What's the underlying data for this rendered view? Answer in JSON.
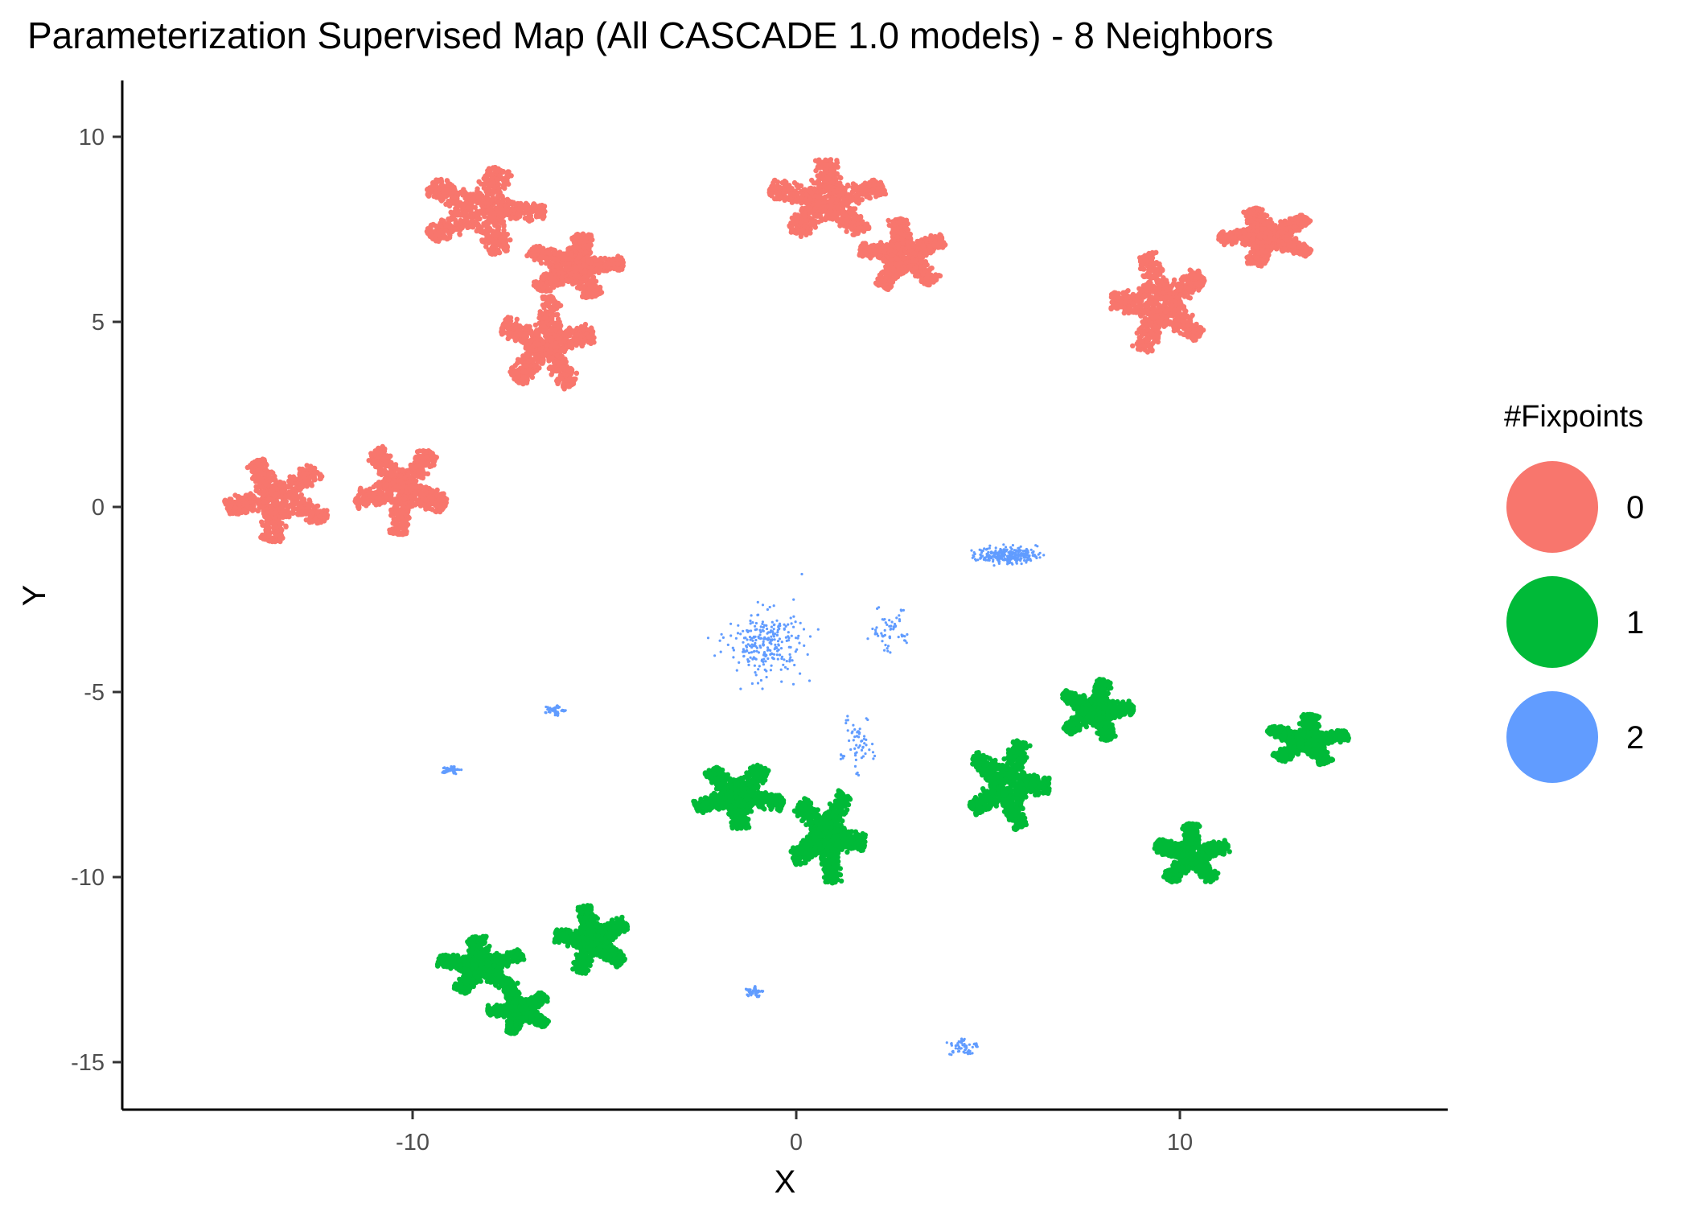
{
  "chart_data": {
    "type": "scatter",
    "title": "Parameterization Supervised Map (All CASCADE 1.0 models) - 8 Neighbors",
    "xlabel": "X",
    "ylabel": "Y",
    "xlim": [
      -17.5,
      17
    ],
    "ylim": [
      -16.5,
      11.5
    ],
    "xticks": [
      -10,
      0,
      10
    ],
    "yticks": [
      10,
      5,
      0,
      -5,
      -10,
      -15
    ],
    "grid": false,
    "legend": {
      "title": "#Fixpoints",
      "position": "right",
      "entries": [
        "0",
        "1",
        "2"
      ]
    },
    "series": [
      {
        "name": "0",
        "color": "#F8766D",
        "marker": "dense leaf-shaped point clusters",
        "clusters": [
          {
            "center": [
              -8.2,
              8.0
            ],
            "spread": [
              3.3,
              2.4
            ]
          },
          {
            "center": [
              -5.8,
              6.5
            ],
            "spread": [
              2.6,
              1.8
            ]
          },
          {
            "center": [
              -6.5,
              4.4
            ],
            "spread": [
              2.5,
              2.6
            ]
          },
          {
            "center": [
              0.8,
              8.3
            ],
            "spread": [
              3.1,
              2.2
            ]
          },
          {
            "center": [
              2.8,
              6.8
            ],
            "spread": [
              2.3,
              2.0
            ]
          },
          {
            "center": [
              9.5,
              5.5
            ],
            "spread": [
              2.6,
              2.8
            ]
          },
          {
            "center": [
              12.3,
              7.3
            ],
            "spread": [
              2.6,
              1.6
            ]
          },
          {
            "center": [
              -13.5,
              0.2
            ],
            "spread": [
              2.8,
              2.3
            ]
          },
          {
            "center": [
              -10.3,
              0.5
            ],
            "spread": [
              2.5,
              2.5
            ]
          }
        ]
      },
      {
        "name": "1",
        "color": "#00BA38",
        "marker": "dense leaf-shaped point clusters",
        "clusters": [
          {
            "center": [
              -1.5,
              -7.8
            ],
            "spread": [
              2.4,
              1.8
            ]
          },
          {
            "center": [
              0.8,
              -8.9
            ],
            "spread": [
              2.0,
              2.6
            ]
          },
          {
            "center": [
              5.5,
              -7.5
            ],
            "spread": [
              2.2,
              2.5
            ]
          },
          {
            "center": [
              7.8,
              -5.5
            ],
            "spread": [
              2.0,
              1.7
            ]
          },
          {
            "center": [
              13.3,
              -6.3
            ],
            "spread": [
              2.2,
              1.4
            ]
          },
          {
            "center": [
              10.3,
              -9.4
            ],
            "spread": [
              2.0,
              1.7
            ]
          },
          {
            "center": [
              -8.2,
              -12.4
            ],
            "spread": [
              2.3,
              1.6
            ]
          },
          {
            "center": [
              -5.3,
              -11.7
            ],
            "spread": [
              2.0,
              1.9
            ]
          },
          {
            "center": [
              -7.2,
              -13.6
            ],
            "spread": [
              1.7,
              1.3
            ]
          }
        ]
      },
      {
        "name": "2",
        "color": "#619CFF",
        "marker": "sparse scattered points and small clusters",
        "clusters": [
          {
            "center": [
              -0.8,
              -3.7
            ],
            "spread": [
              1.8,
              1.6
            ]
          },
          {
            "center": [
              2.4,
              -3.3
            ],
            "spread": [
              1.2,
              1.4
            ]
          },
          {
            "center": [
              1.6,
              -6.4
            ],
            "spread": [
              1.0,
              1.8
            ]
          },
          {
            "center": [
              5.5,
              -1.3
            ],
            "spread": [
              1.4,
              0.4
            ]
          },
          {
            "center": [
              -6.3,
              -5.5
            ],
            "spread": [
              0.6,
              0.3
            ]
          },
          {
            "center": [
              -9.0,
              -7.1
            ],
            "spread": [
              0.6,
              0.25
            ]
          },
          {
            "center": [
              -1.1,
              -13.1
            ],
            "spread": [
              0.5,
              0.3
            ]
          },
          {
            "center": [
              4.3,
              -14.6
            ],
            "spread": [
              0.9,
              0.5
            ]
          }
        ]
      }
    ]
  }
}
